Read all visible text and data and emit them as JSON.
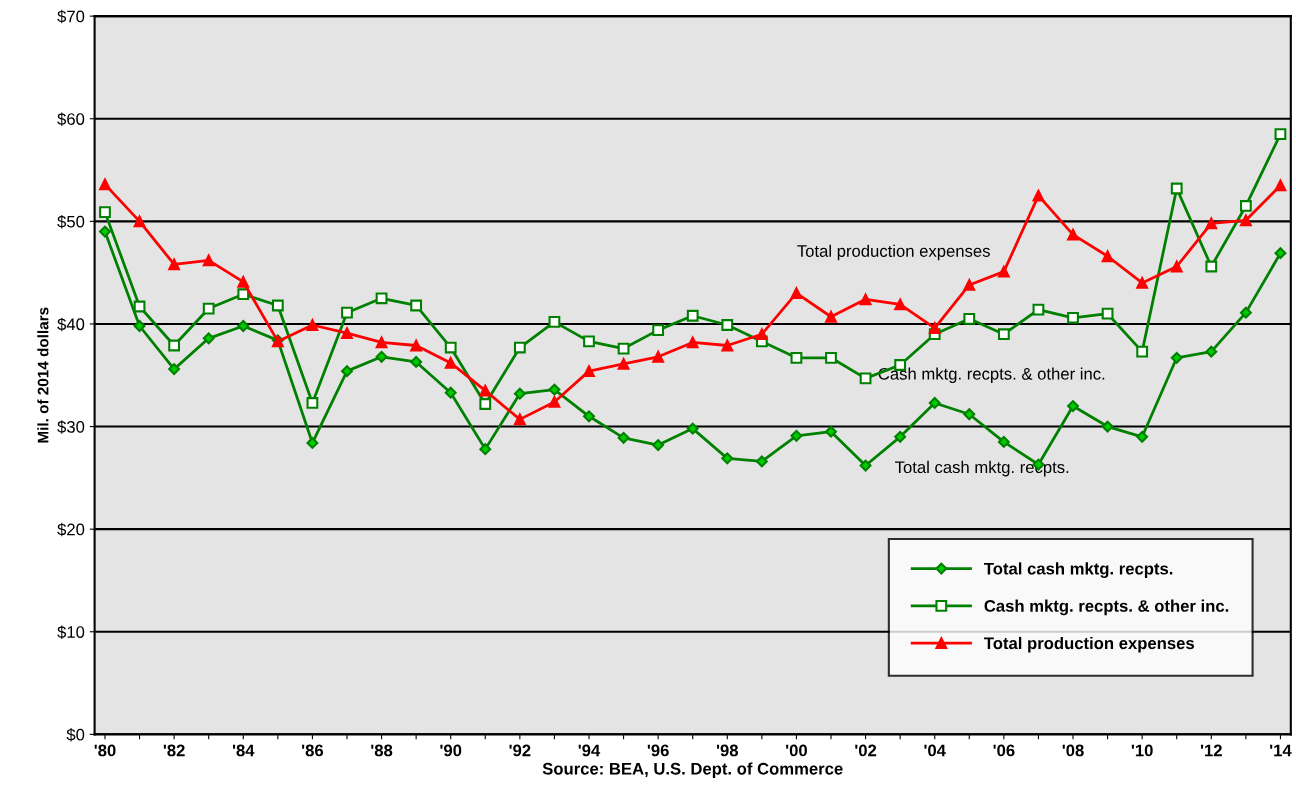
{
  "chart_data": {
    "type": "line",
    "ylabel": "Mil. of 2014 dollars",
    "xlabel": "Source: BEA, U.S. Dept. of Commerce",
    "categories": [
      "'80",
      null,
      "'82",
      null,
      "'84",
      null,
      "'86",
      null,
      "'88",
      null,
      "'90",
      null,
      "'92",
      null,
      "'94",
      null,
      "'96",
      null,
      "'98",
      null,
      "'00",
      null,
      "'02",
      null,
      "'04",
      null,
      "'06",
      null,
      "'08",
      null,
      "'10",
      null,
      "'12",
      null,
      "'14"
    ],
    "series": [
      {
        "name": "Total cash mktg. recpts.",
        "color": "#008000",
        "marker": "diamond",
        "values": [
          49.0,
          39.8,
          35.6,
          38.6,
          39.8,
          38.4,
          28.4,
          35.4,
          36.8,
          36.3,
          33.3,
          27.8,
          33.2,
          33.6,
          31.0,
          28.9,
          28.2,
          29.8,
          26.9,
          26.6,
          29.1,
          29.5,
          26.2,
          29.0,
          32.3,
          31.2,
          28.5,
          26.3,
          32.0,
          30.0,
          29.0,
          36.7,
          37.3,
          41.1,
          46.9
        ]
      },
      {
        "name": "Cash mktg. recpts. & other inc.",
        "color": "#008000",
        "marker": "square",
        "values": [
          50.9,
          41.7,
          37.9,
          41.5,
          42.9,
          41.8,
          32.3,
          41.1,
          42.5,
          41.8,
          37.7,
          32.2,
          37.7,
          40.2,
          38.3,
          37.6,
          39.4,
          40.8,
          39.9,
          38.3,
          36.7,
          36.7,
          34.7,
          36.0,
          39.0,
          40.5,
          39.0,
          41.4,
          40.6,
          41.0,
          37.3,
          53.2,
          45.6,
          51.5,
          58.5
        ]
      },
      {
        "name": "Total production expenses",
        "color": "#ff0000",
        "marker": "triangle",
        "values": [
          53.6,
          50.0,
          45.8,
          46.2,
          44.1,
          38.3,
          39.9,
          39.1,
          38.2,
          37.9,
          36.2,
          33.5,
          30.7,
          32.4,
          35.4,
          36.1,
          36.8,
          38.2,
          37.9,
          39.0,
          43.0,
          40.7,
          42.4,
          41.9,
          39.6,
          43.8,
          45.1,
          52.5,
          48.7,
          46.6,
          44.0,
          45.6,
          49.8,
          50.1,
          53.5
        ]
      }
    ],
    "ylim": [
      0,
      70
    ],
    "yticks": [
      {
        "value": 0,
        "label": "$0"
      },
      {
        "value": 10,
        "label": "$10"
      },
      {
        "value": 20,
        "label": "$20"
      },
      {
        "value": 30,
        "label": "$30"
      },
      {
        "value": 40,
        "label": "$40"
      },
      {
        "value": 50,
        "label": "$50"
      },
      {
        "value": 60,
        "label": "$60"
      },
      {
        "value": 70,
        "label": "$70"
      }
    ],
    "grid": "y",
    "legend": "bottom right",
    "line_style": "solid",
    "annotations": [
      "Total production expenses",
      "Cash mktg. recpts. & other inc.",
      "Total cash mktg. recpts."
    ]
  }
}
